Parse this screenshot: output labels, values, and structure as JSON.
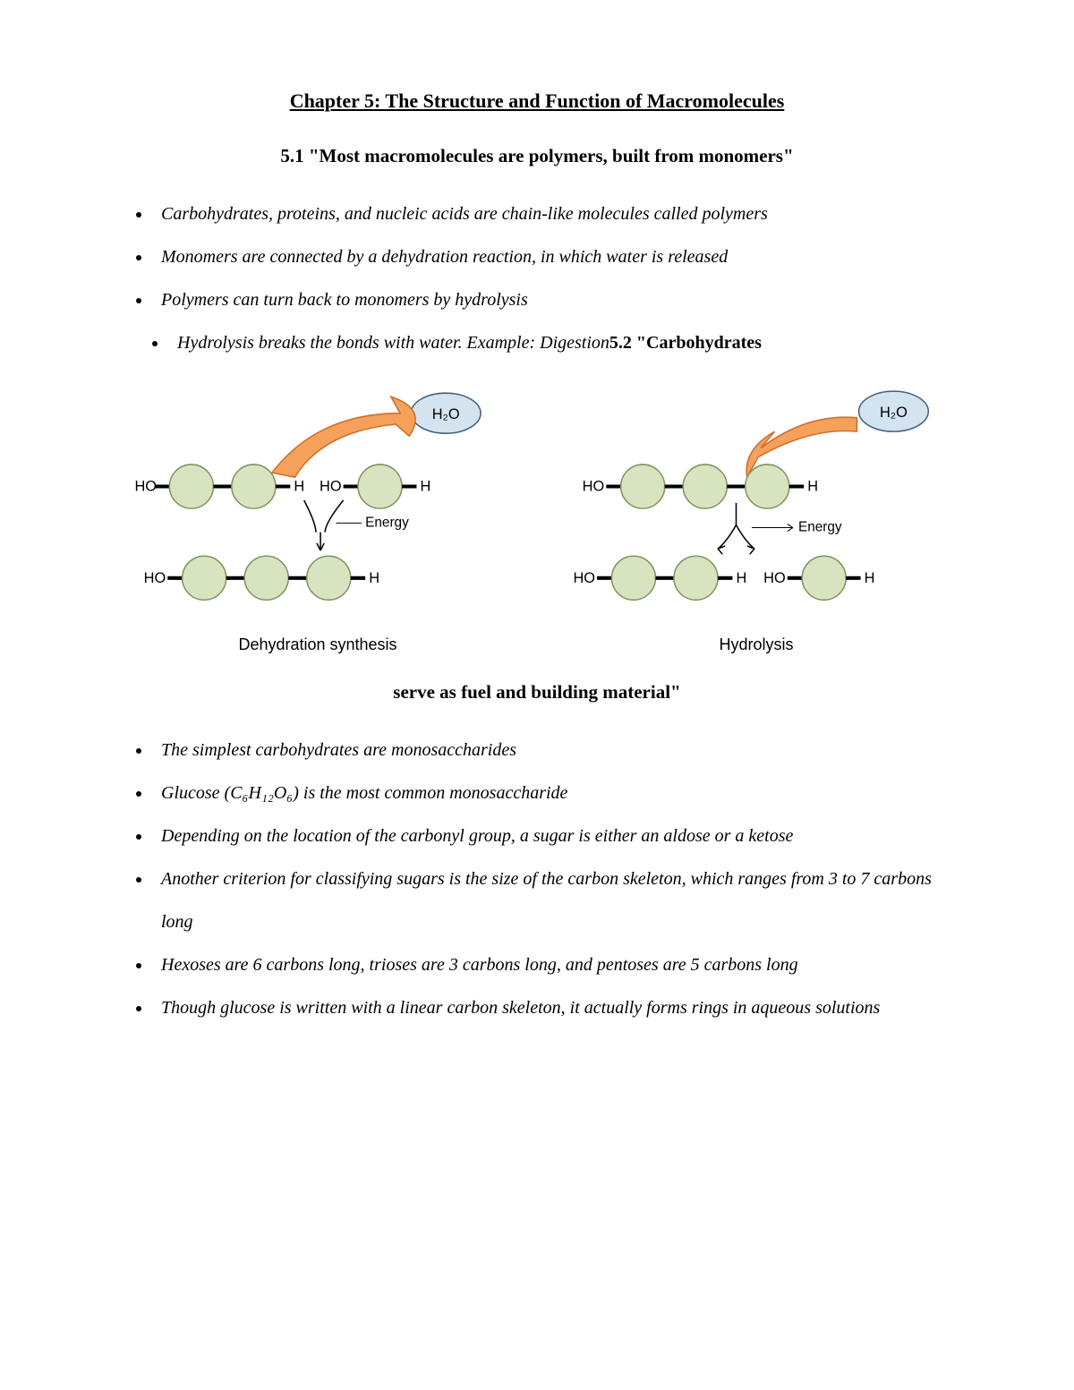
{
  "chapter_title": "Chapter 5: The Structure and Function of Macromolecules",
  "section1_title": "5.1 \"Most macromolecules are polymers, built from monomers\"",
  "bullets1": {
    "b0": "Carbohydrates, proteins, and nucleic acids are chain-like molecules called polymers",
    "b1": "Monomers are connected by a dehydration reaction, in which water is released",
    "b2": "Polymers can turn back to monomers by hydrolysis",
    "b3_pre": "Hydrolysis breaks the bonds with water. Example: Digestion",
    "b3_bold": "5.2 \"Carbohydrates"
  },
  "mid_heading": "serve as fuel and building material\"",
  "bullets2": {
    "b0": "The simplest carbohydrates are monosaccharides",
    "b1": "Glucose (C₆H₁₂O₆) is the most common monosaccharide",
    "b2": "Depending on the location of the carbonyl group, a sugar is either an aldose or a ketose",
    "b3": "Another criterion for classifying sugars is the size of the carbon skeleton, which ranges from 3 to 7 carbons long",
    "b4": "Hexoses are 6 carbons long, trioses are 3 carbons long, and pentoses are 5 carbons long",
    "b5": "Though glucose is written with a linear carbon skeleton, it actually forms rings in aqueous solutions"
  },
  "diagrams": {
    "dehydration": {
      "caption": "Dehydration synthesis",
      "h2o_label": "H₂O",
      "energy_label": "Energy",
      "ho_label": "HO",
      "h_label": "H",
      "monomer_fill": "#d8e4bf",
      "monomer_stroke": "#7f9460",
      "h2o_fill": "#d3e3f0",
      "h2o_stroke": "#43607a",
      "arrow_fill": "#f5a15a",
      "arrow_stroke": "#d06e2a",
      "bond_color": "#000000",
      "text_color": "#000000",
      "label_fontsize": 16,
      "small_fontsize": 14,
      "caption_fontsize": 18,
      "monomer_radius": 24
    },
    "hydrolysis": {
      "caption": "Hydrolysis",
      "h2o_label": "H₂O",
      "energy_label": "Energy",
      "ho_label": "HO",
      "h_label": "H",
      "monomer_fill": "#d8e4bf",
      "monomer_stroke": "#7f9460",
      "h2o_fill": "#d3e3f0",
      "h2o_stroke": "#43607a",
      "arrow_fill": "#f5a15a",
      "arrow_stroke": "#d06e2a",
      "bond_color": "#000000",
      "text_color": "#000000",
      "label_fontsize": 16,
      "small_fontsize": 14,
      "caption_fontsize": 18,
      "monomer_radius": 24
    }
  }
}
